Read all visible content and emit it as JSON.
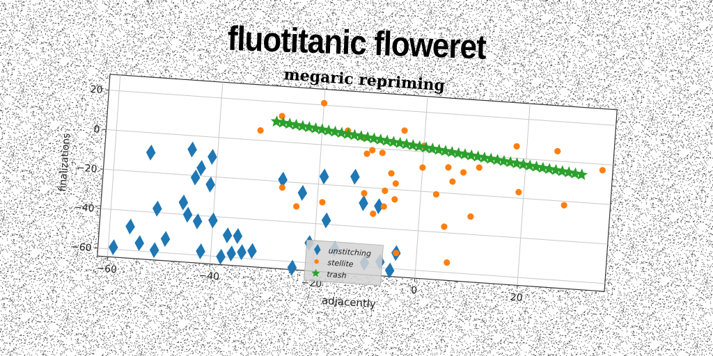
{
  "page": {
    "title": "fluotitanic floweret"
  },
  "chart_data": {
    "type": "scatter",
    "title": "megaric repriming",
    "xlabel": "adjacently",
    "ylabel": "finalizations",
    "xlim": [
      -62,
      37
    ],
    "ylim": [
      -64,
      28
    ],
    "xticks": [
      -60,
      -40,
      -20,
      0,
      20
    ],
    "yticks": [
      -60,
      -40,
      -20,
      0,
      20
    ],
    "grid": true,
    "legend_position": "bottom-center",
    "rotation_deg": 4,
    "series": [
      {
        "name": "unstitching",
        "marker": "diamond",
        "color": "#1f77b4",
        "points": [
          [
            -59,
            -59
          ],
          [
            -56,
            -48
          ],
          [
            -54,
            -56
          ],
          [
            -53,
            -10
          ],
          [
            -51,
            -38
          ],
          [
            -51,
            -59
          ],
          [
            -49,
            -53
          ],
          [
            -46,
            -34
          ],
          [
            -45,
            -40
          ],
          [
            -45,
            -7
          ],
          [
            -44,
            -21
          ],
          [
            -43,
            -16
          ],
          [
            -43,
            -43
          ],
          [
            -42,
            -58
          ],
          [
            -41,
            -10
          ],
          [
            -41,
            -24
          ],
          [
            -40,
            -42
          ],
          [
            -38,
            -60
          ],
          [
            -37,
            -49
          ],
          [
            -36,
            -58
          ],
          [
            -35,
            -49
          ],
          [
            -34,
            -57
          ],
          [
            -32,
            -56
          ],
          [
            -27,
            -19
          ],
          [
            -24,
            -63
          ],
          [
            -23,
            -25
          ],
          [
            -21,
            -50
          ],
          [
            -19,
            -16
          ],
          [
            -18,
            -38
          ],
          [
            -16,
            -52
          ],
          [
            -13,
            -15
          ],
          [
            -11,
            -28
          ],
          [
            -10,
            -58
          ],
          [
            -8,
            -29
          ],
          [
            -7,
            -57
          ],
          [
            -5,
            -61
          ],
          [
            -4,
            -52
          ]
        ]
      },
      {
        "name": "stellite",
        "marker": "circle",
        "color": "#ff7f0e",
        "points": [
          [
            -32,
            5
          ],
          [
            -28,
            13
          ],
          [
            -27,
            -23
          ],
          [
            -24,
            -32
          ],
          [
            -20,
            21
          ],
          [
            -19,
            -29
          ],
          [
            -15,
            8
          ],
          [
            -12,
            5
          ],
          [
            -11,
            -23
          ],
          [
            -11,
            -3
          ],
          [
            -10,
            -1
          ],
          [
            -9,
            -33
          ],
          [
            -8,
            -2
          ],
          [
            -7,
            -29
          ],
          [
            -7,
            -21
          ],
          [
            -6,
            -12
          ],
          [
            -5,
            -25
          ],
          [
            -5,
            -17
          ],
          [
            -4,
            -52
          ],
          [
            -4,
            10
          ],
          [
            0,
            -8
          ],
          [
            0,
            3
          ],
          [
            3,
            -21
          ],
          [
            5,
            -7
          ],
          [
            5,
            -37
          ],
          [
            6,
            -55
          ],
          [
            6,
            -14
          ],
          [
            8,
            -9
          ],
          [
            10,
            -31
          ],
          [
            11,
            -6
          ],
          [
            18,
            6
          ],
          [
            19,
            -17
          ],
          [
            26,
            5
          ],
          [
            28,
            -22
          ],
          [
            35,
            -3
          ]
        ]
      },
      {
        "name": "trash",
        "marker": "star",
        "color": "#2ca02c",
        "line_from": [
          -29,
          10
        ],
        "line_to": [
          31,
          -6
        ],
        "count": 48
      }
    ]
  }
}
